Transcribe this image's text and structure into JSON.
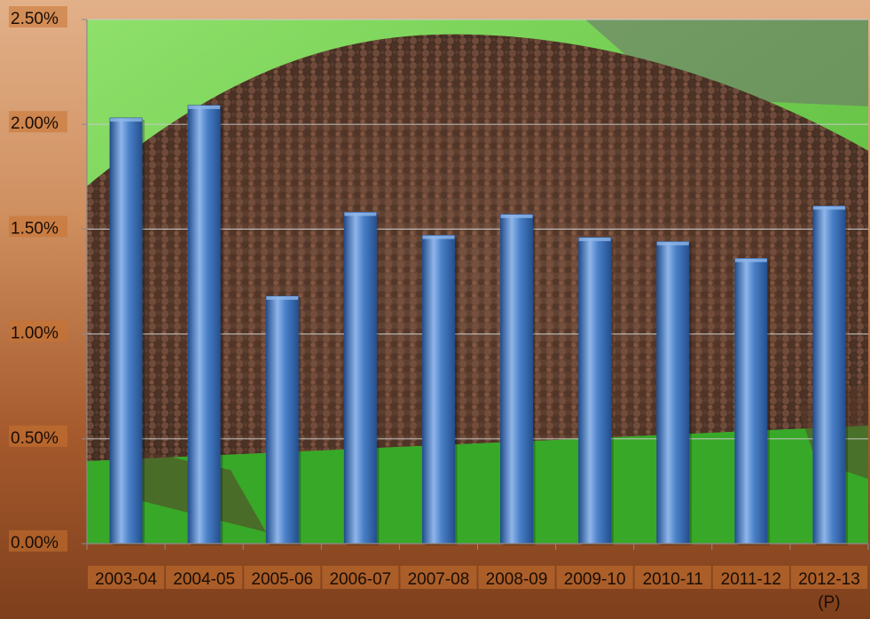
{
  "chart_data": {
    "type": "bar",
    "title": "",
    "xlabel": "",
    "ylabel": "",
    "categories": [
      "2003-04",
      "2004-05",
      "2005-06",
      "2006-07",
      "2007-08",
      "2008-09",
      "2009-10",
      "2010-11",
      "2011-12",
      "2012-13\n(P)"
    ],
    "values": [
      2.03,
      2.09,
      1.18,
      1.58,
      1.47,
      1.57,
      1.46,
      1.44,
      1.36,
      1.61
    ],
    "ylim": [
      0,
      2.5
    ],
    "yticks": [
      "0.00%",
      "0.50%",
      "1.00%",
      "1.50%",
      "2.00%",
      "2.50%"
    ],
    "ytick_values": [
      0,
      0.5,
      1.0,
      1.5,
      2.0,
      2.5
    ],
    "grid": true,
    "legend": "none",
    "colors": {
      "bar": "#4a80c8",
      "bar_highlight": "#8fb6ea",
      "bar_shadow": "#24508f",
      "label_band": "#c9732f",
      "gridline": "#c9c9c9"
    },
    "background_image": "mustard-seeds-pile-photo"
  }
}
